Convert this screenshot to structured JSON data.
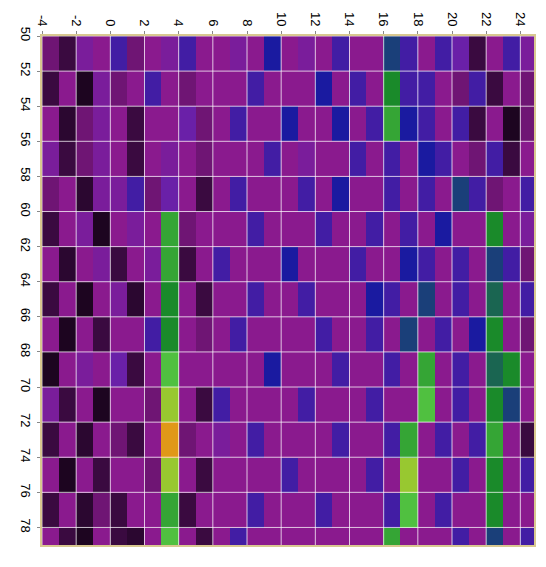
{
  "chart_data": {
    "type": "heatmap",
    "x": [
      -3.5,
      -2.5,
      -1.5,
      -0.5,
      0.5,
      1.5,
      2.5,
      3.5,
      4.5,
      5.5,
      6.5,
      7.5,
      8.5,
      9.5,
      10.5,
      11.5,
      12.5,
      13.5,
      14.5,
      15.5,
      16.5,
      17.5,
      18.5,
      19.5,
      20.5,
      21.5,
      22.5,
      23.5,
      24.5
    ],
    "y": [
      51,
      53,
      55,
      57,
      59,
      61,
      63,
      65,
      67,
      69,
      71,
      73,
      75,
      77,
      79
    ],
    "cells": [
      [
        0.3,
        0.2,
        0.4,
        0.35,
        0.5,
        0.3,
        0.35,
        0.4,
        0.5,
        0.35,
        0.35,
        0.4,
        0.35,
        0.55,
        0.35,
        0.4,
        0.35,
        0.5,
        0.35,
        0.35,
        0.6,
        0.5,
        0.35,
        0.5,
        0.45,
        0.2,
        0.35,
        0.5,
        0.4
      ],
      [
        0.2,
        0.35,
        0.1,
        0.4,
        0.3,
        0.35,
        0.5,
        0.35,
        0.3,
        0.35,
        0.35,
        0.35,
        0.5,
        0.35,
        0.35,
        0.35,
        0.55,
        0.35,
        0.5,
        0.35,
        0.7,
        0.5,
        0.5,
        0.35,
        0.3,
        0.5,
        0.2,
        0.35,
        0.3
      ],
      [
        0.35,
        0.15,
        0.3,
        0.4,
        0.35,
        0.2,
        0.35,
        0.35,
        0.45,
        0.3,
        0.35,
        0.5,
        0.35,
        0.35,
        0.55,
        0.35,
        0.35,
        0.55,
        0.35,
        0.5,
        0.75,
        0.55,
        0.5,
        0.35,
        0.5,
        0.2,
        0.35,
        0.1,
        0.3
      ],
      [
        0.4,
        0.2,
        0.3,
        0.4,
        0.35,
        0.2,
        0.35,
        0.4,
        0.35,
        0.3,
        0.35,
        0.35,
        0.35,
        0.5,
        0.35,
        0.4,
        0.35,
        0.35,
        0.5,
        0.35,
        0.5,
        0.35,
        0.55,
        0.5,
        0.35,
        0.3,
        0.5,
        0.2,
        0.35
      ],
      [
        0.3,
        0.35,
        0.15,
        0.4,
        0.4,
        0.5,
        0.3,
        0.45,
        0.35,
        0.2,
        0.35,
        0.5,
        0.35,
        0.35,
        0.35,
        0.5,
        0.35,
        0.55,
        0.35,
        0.35,
        0.5,
        0.35,
        0.5,
        0.35,
        0.6,
        0.5,
        0.3,
        0.35,
        0.5
      ],
      [
        0.2,
        0.35,
        0.4,
        0.1,
        0.35,
        0.4,
        0.35,
        0.75,
        0.3,
        0.35,
        0.35,
        0.35,
        0.5,
        0.35,
        0.35,
        0.35,
        0.5,
        0.35,
        0.35,
        0.5,
        0.35,
        0.5,
        0.35,
        0.55,
        0.35,
        0.35,
        0.7,
        0.35,
        0.4
      ],
      [
        0.35,
        0.15,
        0.35,
        0.4,
        0.2,
        0.35,
        0.4,
        0.75,
        0.2,
        0.35,
        0.5,
        0.35,
        0.35,
        0.35,
        0.55,
        0.35,
        0.35,
        0.35,
        0.5,
        0.35,
        0.35,
        0.55,
        0.5,
        0.35,
        0.5,
        0.35,
        0.6,
        0.5,
        0.3
      ],
      [
        0.2,
        0.35,
        0.1,
        0.35,
        0.4,
        0.15,
        0.35,
        0.7,
        0.35,
        0.2,
        0.35,
        0.35,
        0.5,
        0.35,
        0.35,
        0.5,
        0.35,
        0.35,
        0.35,
        0.55,
        0.5,
        0.35,
        0.6,
        0.35,
        0.5,
        0.35,
        0.65,
        0.35,
        0.5
      ],
      [
        0.35,
        0.1,
        0.35,
        0.2,
        0.35,
        0.35,
        0.5,
        0.7,
        0.35,
        0.3,
        0.35,
        0.5,
        0.35,
        0.35,
        0.35,
        0.35,
        0.5,
        0.35,
        0.35,
        0.5,
        0.35,
        0.6,
        0.35,
        0.5,
        0.35,
        0.55,
        0.7,
        0.35,
        0.3
      ],
      [
        0.1,
        0.35,
        0.4,
        0.35,
        0.45,
        0.2,
        0.35,
        0.8,
        0.35,
        0.35,
        0.35,
        0.35,
        0.35,
        0.55,
        0.35,
        0.35,
        0.35,
        0.5,
        0.35,
        0.35,
        0.5,
        0.35,
        0.75,
        0.35,
        0.5,
        0.35,
        0.65,
        0.7,
        0.35
      ],
      [
        0.4,
        0.2,
        0.35,
        0.1,
        0.35,
        0.35,
        0.3,
        0.85,
        0.35,
        0.2,
        0.5,
        0.35,
        0.35,
        0.35,
        0.35,
        0.5,
        0.35,
        0.35,
        0.35,
        0.5,
        0.35,
        0.35,
        0.8,
        0.35,
        0.5,
        0.35,
        0.7,
        0.6,
        0.35
      ],
      [
        0.2,
        0.35,
        0.15,
        0.35,
        0.3,
        0.2,
        0.35,
        0.95,
        0.3,
        0.35,
        0.4,
        0.35,
        0.5,
        0.35,
        0.35,
        0.35,
        0.35,
        0.5,
        0.35,
        0.35,
        0.5,
        0.75,
        0.35,
        0.5,
        0.35,
        0.5,
        0.75,
        0.35,
        0.2
      ],
      [
        0.35,
        0.1,
        0.35,
        0.2,
        0.35,
        0.35,
        0.3,
        0.85,
        0.35,
        0.2,
        0.35,
        0.35,
        0.35,
        0.35,
        0.5,
        0.35,
        0.35,
        0.35,
        0.35,
        0.5,
        0.35,
        0.85,
        0.35,
        0.35,
        0.5,
        0.35,
        0.7,
        0.35,
        0.5
      ],
      [
        0.2,
        0.35,
        0.15,
        0.3,
        0.2,
        0.35,
        0.35,
        0.75,
        0.2,
        0.35,
        0.35,
        0.35,
        0.5,
        0.35,
        0.35,
        0.35,
        0.5,
        0.35,
        0.35,
        0.35,
        0.5,
        0.8,
        0.35,
        0.5,
        0.35,
        0.35,
        0.7,
        0.35,
        0.35
      ],
      [
        0.35,
        0.2,
        0.1,
        0.35,
        0.2,
        0.15,
        0.35,
        0.8,
        0.35,
        0.2,
        0.35,
        0.5,
        0.35,
        0.35,
        0.35,
        0.35,
        0.35,
        0.35,
        0.35,
        0.35,
        0.75,
        0.35,
        0.35,
        0.35,
        0.5,
        0.35,
        0.6,
        0.35,
        0.5
      ]
    ],
    "zlim": [
      0,
      1
    ],
    "xlim": [
      -4,
      24.8
    ],
    "ylim": [
      50,
      79
    ],
    "xticks": [
      -4,
      -2,
      0,
      2,
      4,
      6,
      8,
      10,
      12,
      14,
      16,
      18,
      20,
      22,
      24
    ],
    "yticks": [
      50,
      52,
      54,
      56,
      58,
      60,
      62,
      64,
      66,
      68,
      70,
      72,
      74,
      76,
      78
    ],
    "grid": true
  }
}
